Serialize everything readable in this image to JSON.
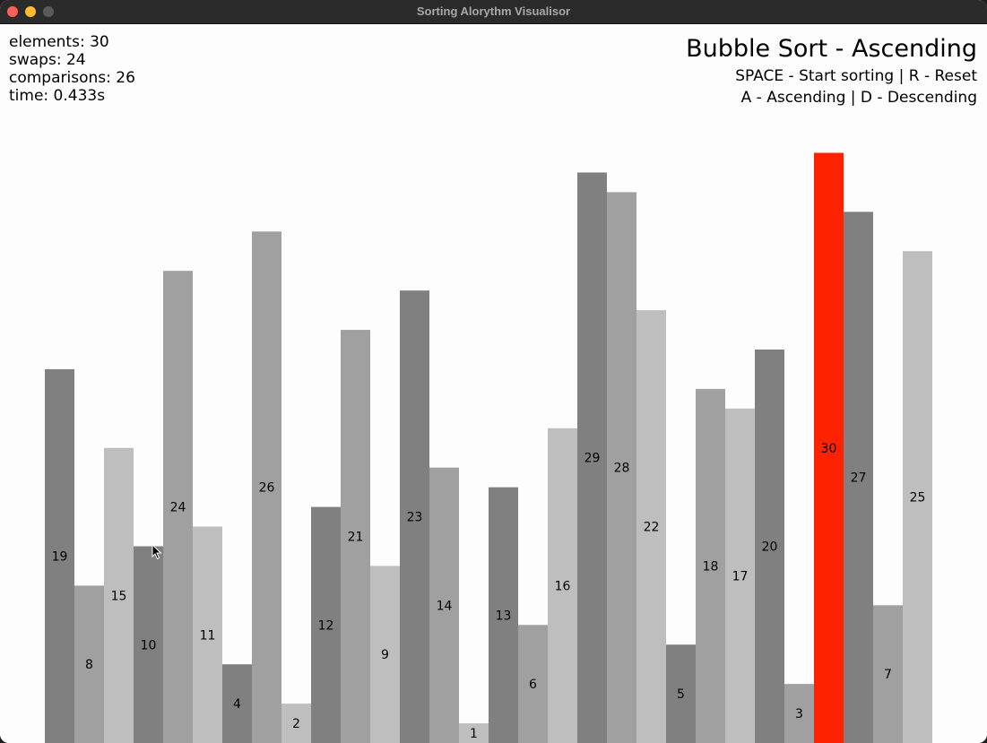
{
  "window": {
    "title": "Sorting Alorythm Visualisor"
  },
  "stats": {
    "elements": "elements: 30",
    "swaps": "swaps: 24",
    "comparisons": "comparisons: 26",
    "time": "time: 0.433s"
  },
  "header": {
    "algorithm": "Bubble Sort - Ascending",
    "hint_start": "SPACE - Start sorting | R - Reset",
    "hint_order": "A - Ascending | D - Descending"
  },
  "chart_data": {
    "type": "bar",
    "values": [
      19,
      8,
      15,
      10,
      24,
      11,
      4,
      26,
      2,
      12,
      21,
      9,
      23,
      14,
      1,
      13,
      6,
      16,
      29,
      28,
      22,
      5,
      18,
      17,
      20,
      3,
      30,
      27,
      7,
      25
    ],
    "highlight_index": 26,
    "max_value": 30
  },
  "colors": {
    "bar_shades": [
      "#808080",
      "#a0a0a0",
      "#bebebe"
    ],
    "highlight": "#ff2200"
  }
}
